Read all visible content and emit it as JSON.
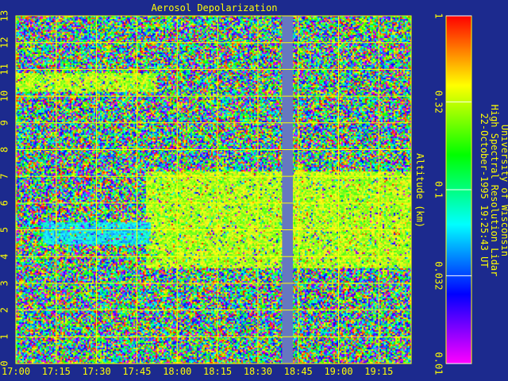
{
  "chart_data": {
    "type": "heatmap",
    "title": "Aerosol Depolarization",
    "ylabel": "Altitude (km)",
    "xlabel": "",
    "x_tick_labels": [
      "17:00",
      "17:15",
      "17:30",
      "17:45",
      "18:00",
      "18:15",
      "18:30",
      "18:45",
      "19:00",
      "19:15"
    ],
    "x_range_minutes": [
      0,
      147
    ],
    "y_range_km": [
      0,
      13
    ],
    "y_tick_labels": [
      "0",
      "1",
      "2",
      "3",
      "4",
      "5",
      "6",
      "7",
      "8",
      "9",
      "10",
      "11",
      "12",
      "13"
    ],
    "grid": true,
    "colorbar": {
      "scale": "log",
      "range": [
        0.01,
        1
      ],
      "tick_labels": [
        "0.01",
        "0.032",
        "0.1",
        "0.32",
        "1"
      ],
      "tick_values": [
        0.01,
        0.032,
        0.1,
        0.32,
        1
      ]
    },
    "data_gap": {
      "start_minutes": 99,
      "end_minutes": 103,
      "note_color": "#6678c0"
    },
    "features": [
      {
        "name": "cirrus layer",
        "time_start_minutes": 0,
        "time_end_minutes": 52,
        "altitude_km": [
          10.2,
          10.9
        ],
        "depolarization_approx": 0.3
      },
      {
        "name": "lower cloud deck",
        "time_start_minutes": 48,
        "time_end_minutes": 147,
        "altitude_km": [
          3.6,
          7.2
        ],
        "depolarization_approx": 0.3
      },
      {
        "name": "aerosol layer",
        "time_start_minutes": 10,
        "time_end_minutes": 50,
        "altitude_km": [
          4.5,
          5.3
        ],
        "depolarization_approx": 0.06
      }
    ]
  },
  "side_text": {
    "line1": "University of Wisconsin",
    "line2": "High Spectral Resolution Lidar",
    "line3": "22-October-1995 19:25:43 UT"
  },
  "colors": {
    "background": "#1c2a8e",
    "axis": "#ffff00",
    "gap": "#6678c0"
  }
}
